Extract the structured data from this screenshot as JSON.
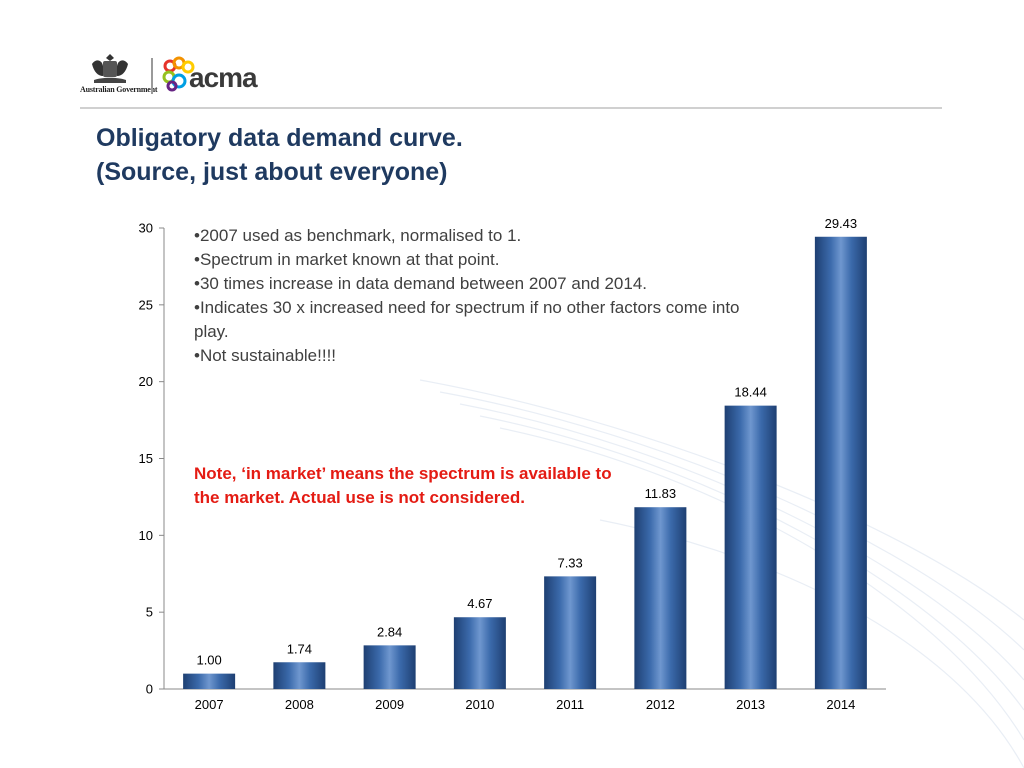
{
  "header": {
    "government_text": "Australian Government",
    "brand_text": "acma",
    "colors": {
      "title": "#1f3a60",
      "rule": "#d0d0d0",
      "note": "#e41b13",
      "bar": "#2d5a96"
    }
  },
  "title": {
    "line1": "Obligatory data demand curve.",
    "line2": "(Source, just about everyone)"
  },
  "bullets": [
    "•2007 used as benchmark, normalised to 1.",
    "•Spectrum in market known at that point.",
    "•30 times increase in data demand between 2007 and 2014.",
    "•Indicates 30 x increased need for spectrum if no other factors come into play.",
    "•Not sustainable!!!!"
  ],
  "note": "Note, ‘in market’ means the spectrum is available to the market.  Actual use is not considered.",
  "chart_data": {
    "type": "bar",
    "categories": [
      "2007",
      "2008",
      "2009",
      "2010",
      "2011",
      "2012",
      "2013",
      "2014"
    ],
    "values": [
      1.0,
      1.74,
      2.84,
      4.67,
      7.33,
      11.83,
      18.44,
      29.43
    ],
    "value_labels": [
      "1.00",
      "1.74",
      "2.84",
      "4.67",
      "7.33",
      "11.83",
      "18.44",
      "29.43"
    ],
    "ylim": [
      0,
      30
    ],
    "yticks": [
      "0",
      "5",
      "10",
      "15",
      "20",
      "25",
      "30"
    ],
    "grid": false,
    "title": "",
    "xlabel": "",
    "ylabel": ""
  }
}
